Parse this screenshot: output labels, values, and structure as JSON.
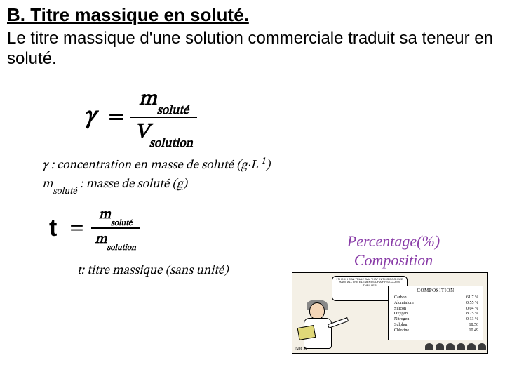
{
  "heading": "B. Titre massique en soluté.",
  "intro": "Le titre massique d'une solution commerciale traduit sa teneur en soluté.",
  "formula1": {
    "lhs": "γ",
    "eq": "=",
    "num_var": "m",
    "num_sub": "soluté",
    "den_var": "V",
    "den_sub": "solution"
  },
  "defs": {
    "gamma_label": "γ : concentration en masse de soluté (g·L",
    "gamma_exp": "-1",
    "gamma_close": ")",
    "m_label": "m",
    "m_sub": "soluté",
    "m_after": " : masse de soluté (g)"
  },
  "formula2": {
    "lhs": "t",
    "eq": "=",
    "num_var": "m",
    "num_sub": "soluté",
    "den_var": "m",
    "den_sub": "solution"
  },
  "def2": "t: titre massique (sans unité)",
  "side": {
    "title_line1": "Percentage(%)",
    "title_line2": "Composition",
    "speech": "I THINK I CAN TRULY SAY THAT IN THIS BOOK WE HAVE ALL THE ELEMENTS OF A FIRST-CLASS THRILLER",
    "board_title": "COMPOSITION",
    "elements": [
      {
        "name": "Carbon",
        "val": "61.7 %"
      },
      {
        "name": "Aluminium",
        "val": "0.55 %"
      },
      {
        "name": "Silicon",
        "val": "0.04 %"
      },
      {
        "name": "Oxygen",
        "val": "8.25 %"
      },
      {
        "name": "Nitrogen",
        "val": "0.13 %"
      },
      {
        "name": "Sulphur",
        "val": "18.56"
      },
      {
        "name": "Chlorine",
        "val": "10.49"
      }
    ],
    "signature": "NICK"
  }
}
